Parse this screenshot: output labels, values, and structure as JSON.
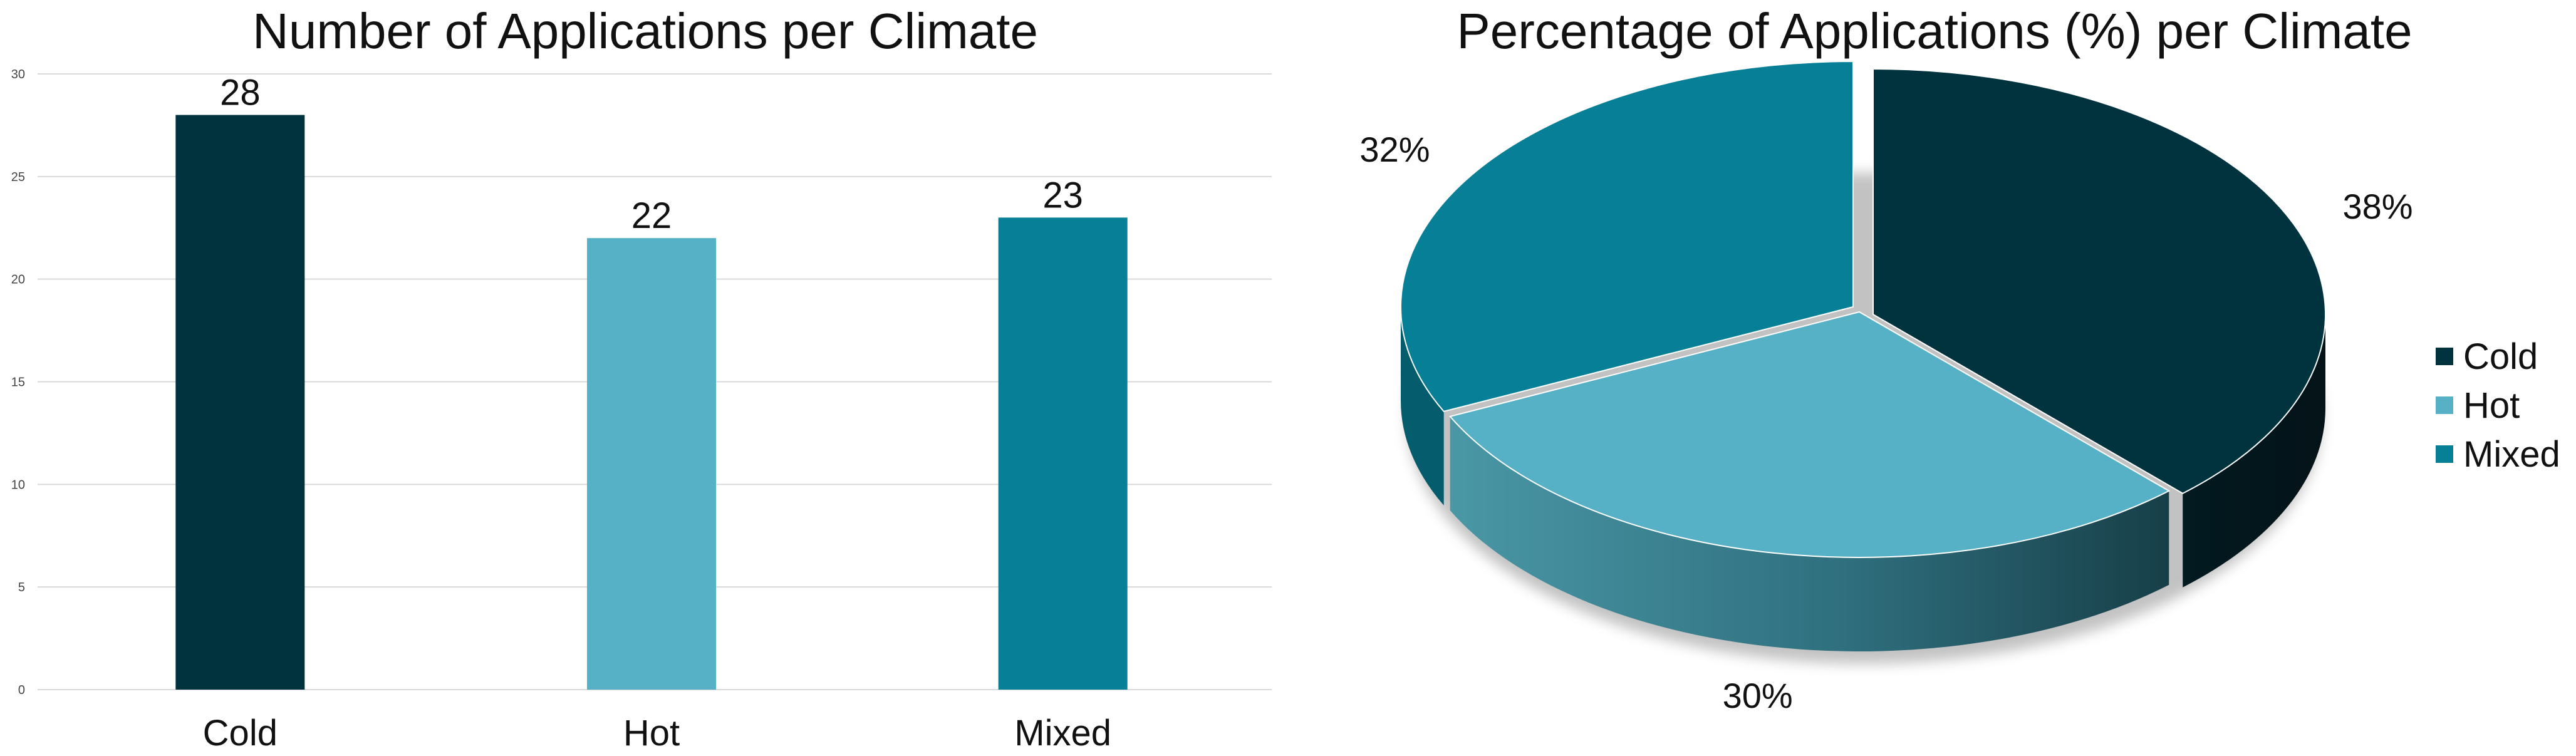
{
  "colors": {
    "cold": "#01333f",
    "hot": "#57b1c6",
    "mixed": "#078097",
    "grid": "#d9d9d9",
    "text": "#111111"
  },
  "chart_data": [
    {
      "type": "bar",
      "title": "Number of Applications per Climate",
      "categories": [
        "Cold",
        "Hot",
        "Mixed"
      ],
      "values": [
        28,
        22,
        23
      ],
      "ylim": [
        0,
        30
      ],
      "yticks": [
        0,
        5,
        10,
        15,
        20,
        25,
        30
      ],
      "grid": true,
      "data_labels": true
    },
    {
      "type": "pie",
      "title": "Percentage of Applications (%) per Climate",
      "labels": [
        "Cold",
        "Hot",
        "Mixed"
      ],
      "values": [
        38,
        30,
        32
      ],
      "value_labels": [
        "38%",
        "30%",
        "32%"
      ],
      "style": "3d exploded",
      "legend": "right"
    }
  ],
  "legend": {
    "items": [
      {
        "label": "Cold",
        "color": "#01333f"
      },
      {
        "label": "Hot",
        "color": "#57b1c6"
      },
      {
        "label": "Mixed",
        "color": "#078097"
      }
    ]
  }
}
